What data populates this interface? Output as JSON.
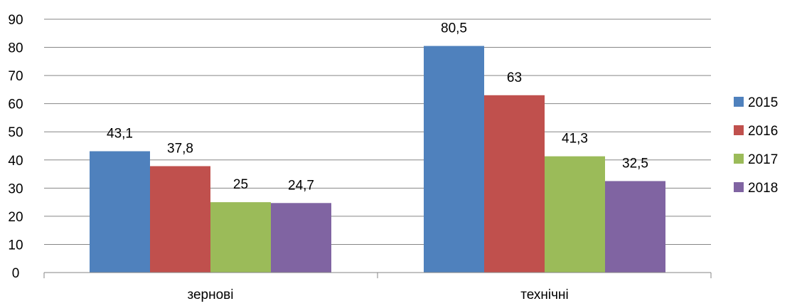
{
  "chart_data": {
    "type": "bar",
    "categories": [
      "зернові",
      "технічні"
    ],
    "series": [
      {
        "name": "2015",
        "values": [
          43.1,
          80.5
        ],
        "labels": [
          "43,1",
          "80,5"
        ],
        "color": "#4F81BD"
      },
      {
        "name": "2016",
        "values": [
          37.8,
          63
        ],
        "labels": [
          "37,8",
          "63"
        ],
        "color": "#C0504D"
      },
      {
        "name": "2017",
        "values": [
          25,
          41.3
        ],
        "labels": [
          "25",
          "41,3"
        ],
        "color": "#9BBB59"
      },
      {
        "name": "2018",
        "values": [
          24.7,
          32.5
        ],
        "labels": [
          "24,7",
          "32,5"
        ],
        "color": "#8064A2"
      }
    ],
    "ylim": [
      0,
      90
    ],
    "yticks": [
      "0",
      "10",
      "20",
      "30",
      "40",
      "50",
      "60",
      "70",
      "80",
      "90"
    ],
    "grid": true,
    "legend_position": "right"
  },
  "colors": {
    "gridline": "#868686",
    "axis": "#868686"
  }
}
